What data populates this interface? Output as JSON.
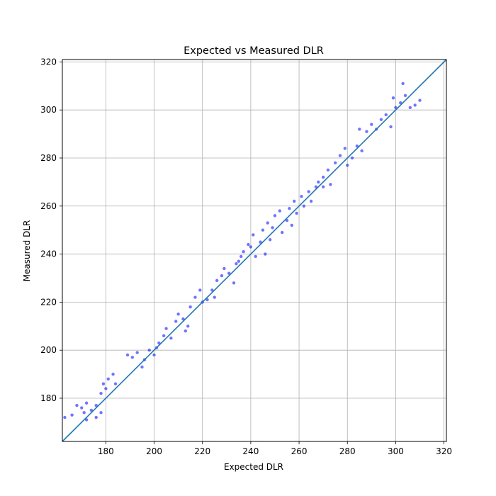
{
  "chart_data": {
    "type": "scatter",
    "title": "Expected vs Measured DLR",
    "xlabel": "Expected DLR",
    "ylabel": "Measured DLR",
    "xlim": [
      162,
      321
    ],
    "ylim": [
      162,
      321
    ],
    "xticks": [
      180,
      200,
      220,
      240,
      260,
      280,
      300,
      320
    ],
    "yticks": [
      180,
      200,
      220,
      240,
      260,
      280,
      300,
      320
    ],
    "grid": true,
    "colors": {
      "points": "#0000ff",
      "reference_line": "#1f77b4",
      "grid": "#b0b0b0"
    },
    "series": [
      {
        "values": [
          [
            163,
            172
          ],
          [
            166,
            173
          ],
          [
            168,
            177
          ],
          [
            170,
            176
          ],
          [
            172,
            178
          ],
          [
            174,
            175
          ],
          [
            176,
            177
          ],
          [
            178,
            182
          ],
          [
            179,
            186
          ],
          [
            180,
            184
          ],
          [
            181,
            188
          ],
          [
            183,
            190
          ],
          [
            176,
            172
          ],
          [
            178,
            174
          ],
          [
            172,
            171
          ],
          [
            171,
            174
          ],
          [
            189,
            198
          ],
          [
            191,
            197
          ],
          [
            193,
            199
          ],
          [
            195,
            193
          ],
          [
            196,
            196
          ],
          [
            198,
            200
          ],
          [
            200,
            198
          ],
          [
            202,
            203
          ],
          [
            204,
            206
          ],
          [
            205,
            209
          ],
          [
            207,
            205
          ],
          [
            209,
            212
          ],
          [
            210,
            215
          ],
          [
            212,
            213
          ],
          [
            214,
            210
          ],
          [
            215,
            218
          ],
          [
            217,
            222
          ],
          [
            219,
            225
          ],
          [
            220,
            220
          ],
          [
            222,
            221
          ],
          [
            224,
            225
          ],
          [
            226,
            229
          ],
          [
            228,
            231
          ],
          [
            229,
            234
          ],
          [
            231,
            232
          ],
          [
            233,
            228
          ],
          [
            234,
            236
          ],
          [
            236,
            239
          ],
          [
            237,
            241
          ],
          [
            239,
            244
          ],
          [
            240,
            243
          ],
          [
            241,
            248
          ],
          [
            242,
            239
          ],
          [
            244,
            245
          ],
          [
            245,
            250
          ],
          [
            247,
            253
          ],
          [
            248,
            246
          ],
          [
            249,
            251
          ],
          [
            250,
            256
          ],
          [
            252,
            258
          ],
          [
            253,
            249
          ],
          [
            255,
            254
          ],
          [
            256,
            259
          ],
          [
            258,
            262
          ],
          [
            259,
            257
          ],
          [
            261,
            264
          ],
          [
            262,
            260
          ],
          [
            264,
            266
          ],
          [
            265,
            262
          ],
          [
            267,
            268
          ],
          [
            268,
            270
          ],
          [
            270,
            272
          ],
          [
            272,
            275
          ],
          [
            273,
            269
          ],
          [
            275,
            278
          ],
          [
            277,
            281
          ],
          [
            279,
            284
          ],
          [
            280,
            277
          ],
          [
            282,
            280
          ],
          [
            284,
            285
          ],
          [
            286,
            283
          ],
          [
            288,
            291
          ],
          [
            290,
            294
          ],
          [
            292,
            292
          ],
          [
            294,
            296
          ],
          [
            296,
            298
          ],
          [
            298,
            293
          ],
          [
            300,
            301
          ],
          [
            302,
            303
          ],
          [
            304,
            306
          ],
          [
            306,
            301
          ],
          [
            308,
            302
          ],
          [
            310,
            304
          ],
          [
            303,
            311
          ],
          [
            299,
            305
          ],
          [
            285,
            292
          ],
          [
            270,
            268
          ],
          [
            257,
            252
          ],
          [
            246,
            240
          ],
          [
            235,
            237
          ],
          [
            225,
            222
          ],
          [
            213,
            208
          ],
          [
            201,
            201
          ],
          [
            184,
            186
          ]
        ]
      }
    ],
    "reference_line": {
      "from": [
        162,
        162
      ],
      "to": [
        321,
        321
      ]
    }
  }
}
